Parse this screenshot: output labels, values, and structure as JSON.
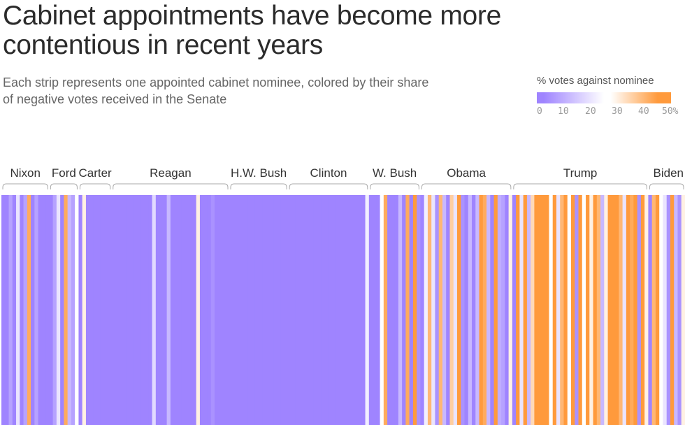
{
  "title": "Cabinet appointments have become more contentious in recent years",
  "subtitle": "Each strip represents one appointed cabinet nominee, colored by their share of negative votes received in the Senate",
  "legend": {
    "title": "% votes against nominee",
    "ticks": [
      "0",
      "10",
      "20",
      "30",
      "40",
      "50%"
    ]
  },
  "colors": {
    "low": "#9f84ff",
    "mid": "#ffffff",
    "high": "#ff9a3c"
  },
  "chart_data": {
    "type": "heatmap",
    "value_range": [
      0,
      50
    ],
    "groups": [
      {
        "president": "Nixon",
        "values": [
          0,
          0,
          8,
          0,
          20,
          0,
          8,
          42,
          0,
          8,
          0,
          0,
          0
        ]
      },
      {
        "president": "Ford",
        "values": [
          0,
          8,
          20,
          0,
          42,
          12,
          8,
          26
        ]
      },
      {
        "president": "Carter",
        "values": [
          0,
          30,
          0,
          0,
          0,
          0,
          0,
          0,
          0
        ]
      },
      {
        "president": "Reagan",
        "values": [
          0,
          0,
          0,
          0,
          0,
          0,
          0,
          0,
          0,
          0,
          0,
          18,
          0,
          0,
          0,
          12,
          0,
          0,
          0,
          0,
          0,
          0,
          0,
          30,
          0,
          0,
          0,
          5,
          0,
          0,
          0,
          0
        ]
      },
      {
        "president": "H.W. Bush",
        "values": [
          0,
          0,
          0,
          0,
          0,
          0,
          0,
          0,
          0,
          0,
          0,
          0,
          0,
          0,
          0,
          0
        ]
      },
      {
        "president": "Clinton",
        "values": [
          0,
          0,
          0,
          0,
          0,
          0,
          0,
          0,
          0,
          0,
          0,
          0,
          0,
          0,
          0,
          0,
          0,
          0,
          0,
          0,
          0,
          22
        ]
      },
      {
        "president": "W. Bush",
        "values": [
          0,
          0,
          0,
          26,
          42,
          0,
          0,
          0,
          12,
          0,
          42,
          0,
          48,
          5
        ]
      },
      {
        "president": "Obama",
        "values": [
          0,
          22,
          40,
          20,
          5,
          40,
          12,
          0,
          36,
          20,
          48,
          5,
          0,
          12,
          0,
          12,
          50,
          42,
          12,
          0,
          50,
          10,
          8,
          0,
          30
        ]
      },
      {
        "president": "Trump",
        "values": [
          0,
          46,
          20,
          50,
          12,
          34,
          50,
          50,
          50,
          45,
          26,
          50,
          20,
          40,
          50,
          26,
          50,
          5,
          45,
          26,
          50,
          30,
          50,
          40,
          12,
          30,
          50,
          45,
          50,
          40,
          20,
          50,
          42,
          46,
          5,
          50,
          30
        ]
      },
      {
        "president": "Biden",
        "values": [
          0,
          40,
          48,
          26,
          20,
          5,
          45,
          12,
          5,
          30
        ]
      }
    ]
  }
}
